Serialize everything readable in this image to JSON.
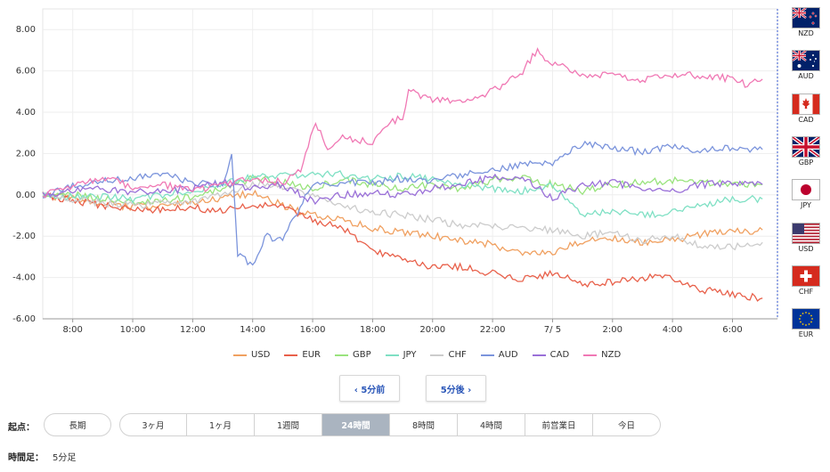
{
  "chart_data": {
    "type": "line",
    "ylim": [
      -6,
      9
    ],
    "yticks": [
      "8.00",
      "6.00",
      "4.00",
      "2.00",
      "0.00",
      "-2.00",
      "-4.00",
      "-6.00"
    ],
    "ytick_values": [
      8,
      6,
      4,
      2,
      0,
      -2,
      -4,
      -6
    ],
    "xlim": [
      7.0,
      31.5
    ],
    "xticks": [
      "8:00",
      "10:00",
      "12:00",
      "14:00",
      "16:00",
      "18:00",
      "20:00",
      "22:00",
      "7/ 5",
      "2:00",
      "4:00",
      "6:00"
    ],
    "xtick_values": [
      8,
      10,
      12,
      14,
      16,
      18,
      20,
      22,
      24,
      26,
      28,
      30
    ],
    "grid": true,
    "series": [
      {
        "name": "USD",
        "color": "#f0a060",
        "points": [
          [
            7.0,
            0.0
          ],
          [
            8.0,
            -0.2
          ],
          [
            9.0,
            -0.4
          ],
          [
            10.0,
            -0.6
          ],
          [
            11.0,
            -0.5
          ],
          [
            12.0,
            -0.4
          ],
          [
            13.0,
            -0.2
          ],
          [
            14.0,
            0.1
          ],
          [
            15.0,
            -0.5
          ],
          [
            16.0,
            -1.0
          ],
          [
            17.0,
            -1.2
          ],
          [
            18.0,
            -1.6
          ],
          [
            19.0,
            -1.8
          ],
          [
            20.0,
            -2.0
          ],
          [
            21.0,
            -2.2
          ],
          [
            22.0,
            -2.4
          ],
          [
            23.0,
            -2.9
          ],
          [
            24.0,
            -2.8
          ],
          [
            25.0,
            -2.2
          ],
          [
            26.0,
            -2.1
          ],
          [
            27.0,
            -2.3
          ],
          [
            28.0,
            -2.2
          ],
          [
            29.0,
            -1.9
          ],
          [
            30.0,
            -1.8
          ],
          [
            31.0,
            -1.7
          ]
        ]
      },
      {
        "name": "EUR",
        "color": "#e8604a",
        "points": [
          [
            7.0,
            0.0
          ],
          [
            8.0,
            -0.3
          ],
          [
            9.0,
            -0.5
          ],
          [
            10.0,
            -0.7
          ],
          [
            11.0,
            -0.7
          ],
          [
            12.0,
            -0.6
          ],
          [
            13.0,
            -0.8
          ],
          [
            14.0,
            -0.5
          ],
          [
            15.0,
            -0.6
          ],
          [
            16.0,
            -1.2
          ],
          [
            17.0,
            -1.6
          ],
          [
            18.0,
            -2.8
          ],
          [
            19.0,
            -3.0
          ],
          [
            20.0,
            -3.5
          ],
          [
            21.0,
            -3.5
          ],
          [
            22.0,
            -3.8
          ],
          [
            23.0,
            -4.1
          ],
          [
            24.0,
            -3.8
          ],
          [
            25.0,
            -4.3
          ],
          [
            26.0,
            -4.2
          ],
          [
            27.0,
            -4.0
          ],
          [
            28.0,
            -4.0
          ],
          [
            29.0,
            -4.6
          ],
          [
            30.0,
            -4.8
          ],
          [
            31.0,
            -5.0
          ]
        ]
      },
      {
        "name": "GBP",
        "color": "#99e37d",
        "points": [
          [
            7.0,
            0.0
          ],
          [
            8.0,
            0.0
          ],
          [
            9.0,
            -0.2
          ],
          [
            10.0,
            -0.4
          ],
          [
            11.0,
            -0.3
          ],
          [
            12.0,
            -0.1
          ],
          [
            13.0,
            0.3
          ],
          [
            14.0,
            0.8
          ],
          [
            15.0,
            0.6
          ],
          [
            16.0,
            0.3
          ],
          [
            17.0,
            0.8
          ],
          [
            18.0,
            0.5
          ],
          [
            19.0,
            0.3
          ],
          [
            20.0,
            0.5
          ],
          [
            21.0,
            0.3
          ],
          [
            22.0,
            0.7
          ],
          [
            23.0,
            0.8
          ],
          [
            24.0,
            0.5
          ],
          [
            25.0,
            0.2
          ],
          [
            26.0,
            0.5
          ],
          [
            27.0,
            0.6
          ],
          [
            28.0,
            0.7
          ],
          [
            29.0,
            0.6
          ],
          [
            30.0,
            0.5
          ],
          [
            31.0,
            0.5
          ]
        ]
      },
      {
        "name": "JPY",
        "color": "#7fe0c4",
        "points": [
          [
            7.0,
            0.0
          ],
          [
            8.0,
            -0.1
          ],
          [
            9.0,
            -0.1
          ],
          [
            10.0,
            -0.2
          ],
          [
            11.0,
            0.0
          ],
          [
            12.0,
            0.2
          ],
          [
            13.0,
            0.5
          ],
          [
            14.0,
            0.9
          ],
          [
            15.0,
            0.9
          ],
          [
            16.0,
            1.0
          ],
          [
            17.0,
            1.0
          ],
          [
            18.0,
            0.8
          ],
          [
            19.0,
            0.9
          ],
          [
            20.0,
            0.8
          ],
          [
            21.0,
            0.5
          ],
          [
            22.0,
            0.3
          ],
          [
            23.0,
            0.2
          ],
          [
            24.0,
            0.5
          ],
          [
            25.0,
            -1.0
          ],
          [
            26.0,
            -0.8
          ],
          [
            27.0,
            -1.0
          ],
          [
            28.0,
            -0.8
          ],
          [
            29.0,
            -0.5
          ],
          [
            30.0,
            -0.2
          ],
          [
            31.0,
            -0.2
          ]
        ]
      },
      {
        "name": "CHF",
        "color": "#cccccc",
        "points": [
          [
            7.0,
            0.0
          ],
          [
            8.0,
            -0.2
          ],
          [
            9.0,
            -0.4
          ],
          [
            10.0,
            -0.5
          ],
          [
            11.0,
            -0.4
          ],
          [
            12.0,
            -0.3
          ],
          [
            13.0,
            0.0
          ],
          [
            14.0,
            0.5
          ],
          [
            15.0,
            0.4
          ],
          [
            16.0,
            0.0
          ],
          [
            17.0,
            -0.6
          ],
          [
            18.0,
            -0.8
          ],
          [
            19.0,
            -1.0
          ],
          [
            20.0,
            -1.2
          ],
          [
            21.0,
            -1.5
          ],
          [
            22.0,
            -1.5
          ],
          [
            23.0,
            -1.6
          ],
          [
            24.0,
            -1.7
          ],
          [
            25.0,
            -2.0
          ],
          [
            26.0,
            -1.8
          ],
          [
            27.0,
            -2.2
          ],
          [
            28.0,
            -2.0
          ],
          [
            29.0,
            -2.5
          ],
          [
            30.0,
            -2.5
          ],
          [
            31.0,
            -2.3
          ]
        ]
      },
      {
        "name": "AUD",
        "color": "#7b94dc",
        "points": [
          [
            7.0,
            0.0
          ],
          [
            8.0,
            0.4
          ],
          [
            9.0,
            0.7
          ],
          [
            10.0,
            0.8
          ],
          [
            11.0,
            1.0
          ],
          [
            12.0,
            0.6
          ],
          [
            13.0,
            0.5
          ],
          [
            13.3,
            1.8
          ],
          [
            13.5,
            -2.8
          ],
          [
            14.0,
            -3.5
          ],
          [
            14.4,
            -2.0
          ],
          [
            15.0,
            -2.2
          ],
          [
            15.5,
            -0.8
          ],
          [
            16.0,
            0.5
          ],
          [
            17.0,
            0.6
          ],
          [
            18.0,
            0.6
          ],
          [
            19.0,
            0.8
          ],
          [
            20.0,
            0.7
          ],
          [
            21.0,
            1.0
          ],
          [
            22.0,
            1.2
          ],
          [
            23.0,
            1.5
          ],
          [
            24.0,
            1.5
          ],
          [
            25.0,
            2.5
          ],
          [
            26.0,
            2.2
          ],
          [
            27.0,
            2.1
          ],
          [
            28.0,
            2.3
          ],
          [
            29.0,
            2.1
          ],
          [
            30.0,
            2.3
          ],
          [
            31.0,
            2.2
          ]
        ]
      },
      {
        "name": "CAD",
        "color": "#9a70d8",
        "points": [
          [
            7.0,
            0.0
          ],
          [
            8.0,
            0.2
          ],
          [
            9.0,
            0.3
          ],
          [
            10.0,
            0.1
          ],
          [
            11.0,
            0.2
          ],
          [
            12.0,
            0.3
          ],
          [
            13.0,
            0.6
          ],
          [
            14.0,
            0.3
          ],
          [
            15.0,
            0.5
          ],
          [
            16.0,
            -0.3
          ],
          [
            17.0,
            0.0
          ],
          [
            18.0,
            0.1
          ],
          [
            19.0,
            0.0
          ],
          [
            20.0,
            0.3
          ],
          [
            21.0,
            0.6
          ],
          [
            22.0,
            0.8
          ],
          [
            23.0,
            0.9
          ],
          [
            24.0,
            -0.2
          ],
          [
            25.0,
            0.5
          ],
          [
            26.0,
            0.6
          ],
          [
            27.0,
            0.3
          ],
          [
            28.0,
            0.2
          ],
          [
            29.0,
            0.5
          ],
          [
            30.0,
            0.6
          ],
          [
            31.0,
            0.5
          ]
        ]
      },
      {
        "name": "NZD",
        "color": "#f078b4",
        "points": [
          [
            7.0,
            0.0
          ],
          [
            8.0,
            0.4
          ],
          [
            9.0,
            0.8
          ],
          [
            10.0,
            0.4
          ],
          [
            11.0,
            0.5
          ],
          [
            12.0,
            0.2
          ],
          [
            13.0,
            0.5
          ],
          [
            14.0,
            0.8
          ],
          [
            15.0,
            0.6
          ],
          [
            15.6,
            1.2
          ],
          [
            16.1,
            3.5
          ],
          [
            16.5,
            2.3
          ],
          [
            17.0,
            2.8
          ],
          [
            18.0,
            2.5
          ],
          [
            18.5,
            3.5
          ],
          [
            19.0,
            3.7
          ],
          [
            19.2,
            5.0
          ],
          [
            20.0,
            4.6
          ],
          [
            21.0,
            4.5
          ],
          [
            22.0,
            5.0
          ],
          [
            23.0,
            6.0
          ],
          [
            23.5,
            7.0
          ],
          [
            24.0,
            6.3
          ],
          [
            24.5,
            6.2
          ],
          [
            25.0,
            5.8
          ],
          [
            26.0,
            5.8
          ],
          [
            27.0,
            5.6
          ],
          [
            28.0,
            5.8
          ],
          [
            29.0,
            5.8
          ],
          [
            30.0,
            5.6
          ],
          [
            30.5,
            5.3
          ],
          [
            31.0,
            5.6
          ]
        ]
      }
    ]
  },
  "legend": [
    "USD",
    "EUR",
    "GBP",
    "JPY",
    "CHF",
    "AUD",
    "CAD",
    "NZD"
  ],
  "nav": {
    "prev_label": "‹ 5分前",
    "next_label": "5分後 ›"
  },
  "flags": [
    {
      "code": "NZD",
      "icon": "nz-flag-icon"
    },
    {
      "code": "AUD",
      "icon": "au-flag-icon"
    },
    {
      "code": "CAD",
      "icon": "ca-flag-icon"
    },
    {
      "code": "GBP",
      "icon": "gb-flag-icon"
    },
    {
      "code": "JPY",
      "icon": "jp-flag-icon"
    },
    {
      "code": "USD",
      "icon": "us-flag-icon"
    },
    {
      "code": "CHF",
      "icon": "ch-flag-icon"
    },
    {
      "code": "EUR",
      "icon": "eu-flag-icon"
    }
  ],
  "range": {
    "label": "起点：",
    "options": [
      "長期",
      "3ヶ月",
      "1ヶ月",
      "1週間",
      "24時間",
      "8時間",
      "4時間",
      "前営業日",
      "今日"
    ],
    "active": "24時間"
  },
  "footer": {
    "label": "時間足：",
    "value": "5分足"
  }
}
